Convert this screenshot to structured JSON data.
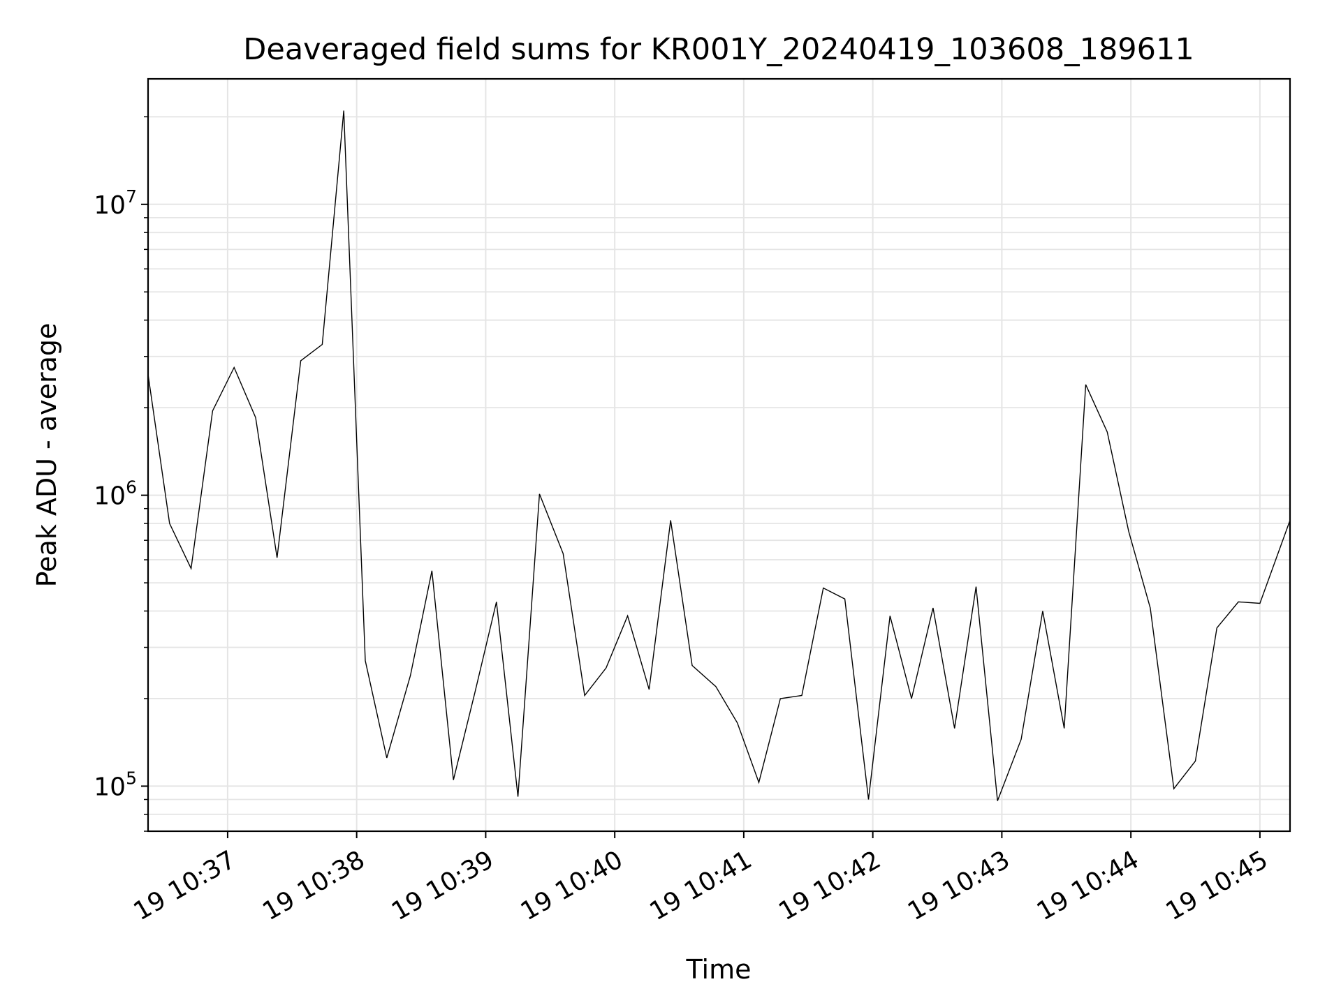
{
  "chart_data": {
    "type": "line",
    "title": "Deaveraged field sums for KR001Y_20240419_103608_189611",
    "xlabel": "Time",
    "ylabel": "Peak ADU - average",
    "yscale": "log",
    "ylim": [
      70000,
      27000000
    ],
    "xlim": [
      "2024-04-19 10:36:23",
      "2024-04-19 10:45:14"
    ],
    "grid": true,
    "line_color": "#000000",
    "grid_color": "#e5e5e5",
    "x_ticks": [
      {
        "time": "2024-04-19 10:37:00",
        "label": "19 10:37"
      },
      {
        "time": "2024-04-19 10:38:00",
        "label": "19 10:38"
      },
      {
        "time": "2024-04-19 10:39:00",
        "label": "19 10:39"
      },
      {
        "time": "2024-04-19 10:40:00",
        "label": "19 10:40"
      },
      {
        "time": "2024-04-19 10:41:00",
        "label": "19 10:41"
      },
      {
        "time": "2024-04-19 10:42:00",
        "label": "19 10:42"
      },
      {
        "time": "2024-04-19 10:43:00",
        "label": "19 10:43"
      },
      {
        "time": "2024-04-19 10:44:00",
        "label": "19 10:44"
      },
      {
        "time": "2024-04-19 10:45:00",
        "label": "19 10:45"
      }
    ],
    "y_ticks": [
      {
        "value": 100000,
        "base": "10",
        "exp": "5"
      },
      {
        "value": 1000000,
        "base": "10",
        "exp": "6"
      },
      {
        "value": 10000000,
        "base": "10",
        "exp": "7"
      }
    ],
    "x": [
      "2024-04-19 10:36:23",
      "2024-04-19 10:36:33",
      "2024-04-19 10:36:43",
      "2024-04-19 10:36:53",
      "2024-04-19 10:37:03",
      "2024-04-19 10:37:13",
      "2024-04-19 10:37:23",
      "2024-04-19 10:37:34",
      "2024-04-19 10:37:44",
      "2024-04-19 10:37:54",
      "2024-04-19 10:38:04",
      "2024-04-19 10:38:14",
      "2024-04-19 10:38:25",
      "2024-04-19 10:38:35",
      "2024-04-19 10:38:45",
      "2024-04-19 10:38:55",
      "2024-04-19 10:39:05",
      "2024-04-19 10:39:15",
      "2024-04-19 10:39:25",
      "2024-04-19 10:39:36",
      "2024-04-19 10:39:46",
      "2024-04-19 10:39:56",
      "2024-04-19 10:40:06",
      "2024-04-19 10:40:16",
      "2024-04-19 10:40:26",
      "2024-04-19 10:40:36",
      "2024-04-19 10:40:47",
      "2024-04-19 10:40:57",
      "2024-04-19 10:41:07",
      "2024-04-19 10:41:17",
      "2024-04-19 10:41:27",
      "2024-04-19 10:41:37",
      "2024-04-19 10:41:47",
      "2024-04-19 10:41:58",
      "2024-04-19 10:42:08",
      "2024-04-19 10:42:18",
      "2024-04-19 10:42:28",
      "2024-04-19 10:42:38",
      "2024-04-19 10:42:48",
      "2024-04-19 10:42:58",
      "2024-04-19 10:43:09",
      "2024-04-19 10:43:19",
      "2024-04-19 10:43:29",
      "2024-04-19 10:43:39",
      "2024-04-19 10:43:49",
      "2024-04-19 10:43:59",
      "2024-04-19 10:44:09",
      "2024-04-19 10:44:20",
      "2024-04-19 10:44:30",
      "2024-04-19 10:44:40",
      "2024-04-19 10:44:50",
      "2024-04-19 10:45:00",
      "2024-04-19 10:45:14"
    ],
    "values": [
      2600000,
      800000,
      560000,
      1950000,
      2750000,
      1850000,
      610000,
      2900000,
      3300000,
      21000000,
      270000,
      125000,
      240000,
      550000,
      105000,
      210000,
      430000,
      92000,
      1010000,
      630000,
      205000,
      255000,
      385000,
      215000,
      820000,
      260000,
      220000,
      165000,
      103000,
      200000,
      205000,
      480000,
      440000,
      90000,
      385000,
      200000,
      410000,
      158000,
      485000,
      89000,
      145000,
      400000,
      158000,
      2400000,
      1650000,
      750000,
      410000,
      98000,
      122000,
      350000,
      430000,
      425000,
      820000
    ]
  }
}
